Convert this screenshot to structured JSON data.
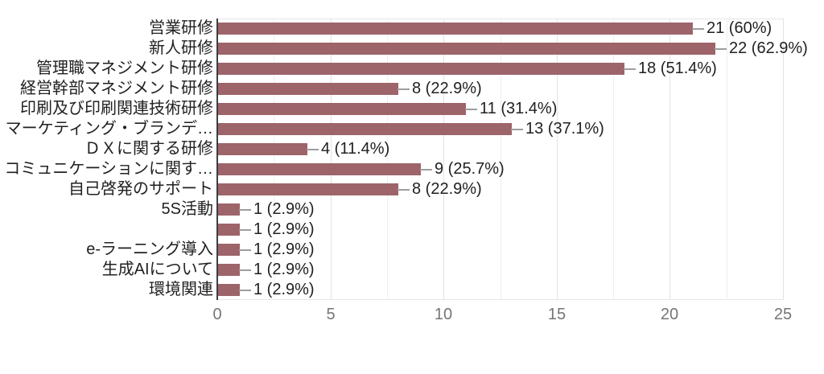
{
  "chart_data": {
    "type": "bar",
    "orientation": "horizontal",
    "title": "",
    "xlabel": "",
    "ylabel": "",
    "legend": "none",
    "grid": true,
    "xlim": [
      0,
      25
    ],
    "xticks": [
      "0",
      "5",
      "10",
      "15",
      "20",
      "25"
    ],
    "xtick_values": [
      0,
      5,
      10,
      15,
      20,
      25
    ],
    "minor_gridline_step": 2.5,
    "categories": [
      "営業研修",
      "新人研修",
      "管理職マネジメント研修",
      "経営幹部マネジメント研修",
      "印刷及び印刷関連技術研修",
      "マーケティング・ブランデ…",
      "ＤＸに関する研修",
      "コミュニケーションに関す…",
      "自己啓発のサポート",
      "5S活動",
      "",
      "e-ラーニング導入",
      "生成AIについて",
      "環境関連"
    ],
    "values": [
      21,
      22,
      18,
      8,
      11,
      13,
      4,
      9,
      8,
      1,
      1,
      1,
      1,
      1
    ],
    "value_labels": [
      "21 (60%)",
      "22 (62.9%)",
      "18 (51.4%)",
      "8 (22.9%)",
      "11 (31.4%)",
      "13 (37.1%)",
      "4 (11.4%)",
      "9 (25.7%)",
      "8 (22.9%)",
      "1 (2.9%)",
      "1 (2.9%)",
      "1 (2.9%)",
      "1 (2.9%)",
      "1 (2.9%)"
    ],
    "colors": {
      "bar": "#9d646a",
      "axis_line": "#3c4043",
      "major_gridline": "#e3e3e3",
      "minor_gridline": "#efefef",
      "plot_edge": "#e6e6e6",
      "tick_label": "#757575",
      "category_label": "#212121",
      "value_label": "#212121",
      "connector": "#9e9e9e",
      "background": "#ffffff"
    }
  }
}
